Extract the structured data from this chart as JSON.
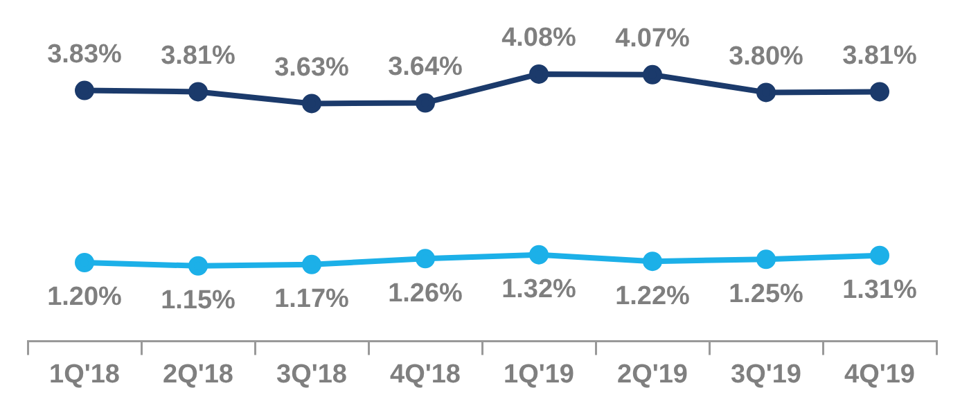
{
  "chart_data": {
    "type": "line",
    "categories": [
      "1Q'18",
      "2Q'18",
      "3Q'18",
      "4Q'18",
      "1Q'19",
      "2Q'19",
      "3Q'19",
      "4Q'19"
    ],
    "series": [
      {
        "color": "#1b3a6b",
        "values": [
          3.83,
          3.81,
          3.63,
          3.64,
          4.08,
          4.07,
          3.8,
          3.81
        ],
        "value_labels": [
          "3.83%",
          "3.81%",
          "3.63%",
          "3.64%",
          "4.08%",
          "4.07%",
          "3.80%",
          "3.81%"
        ]
      },
      {
        "color": "#1cb0e8",
        "values": [
          1.2,
          1.15,
          1.17,
          1.26,
          1.32,
          1.22,
          1.25,
          1.31
        ],
        "value_labels": [
          "1.20%",
          "1.15%",
          "1.17%",
          "1.26%",
          "1.32%",
          "1.22%",
          "1.25%",
          "1.31%"
        ]
      }
    ],
    "grid": false,
    "legend": false,
    "marker": "circle",
    "line_style": "solid"
  }
}
